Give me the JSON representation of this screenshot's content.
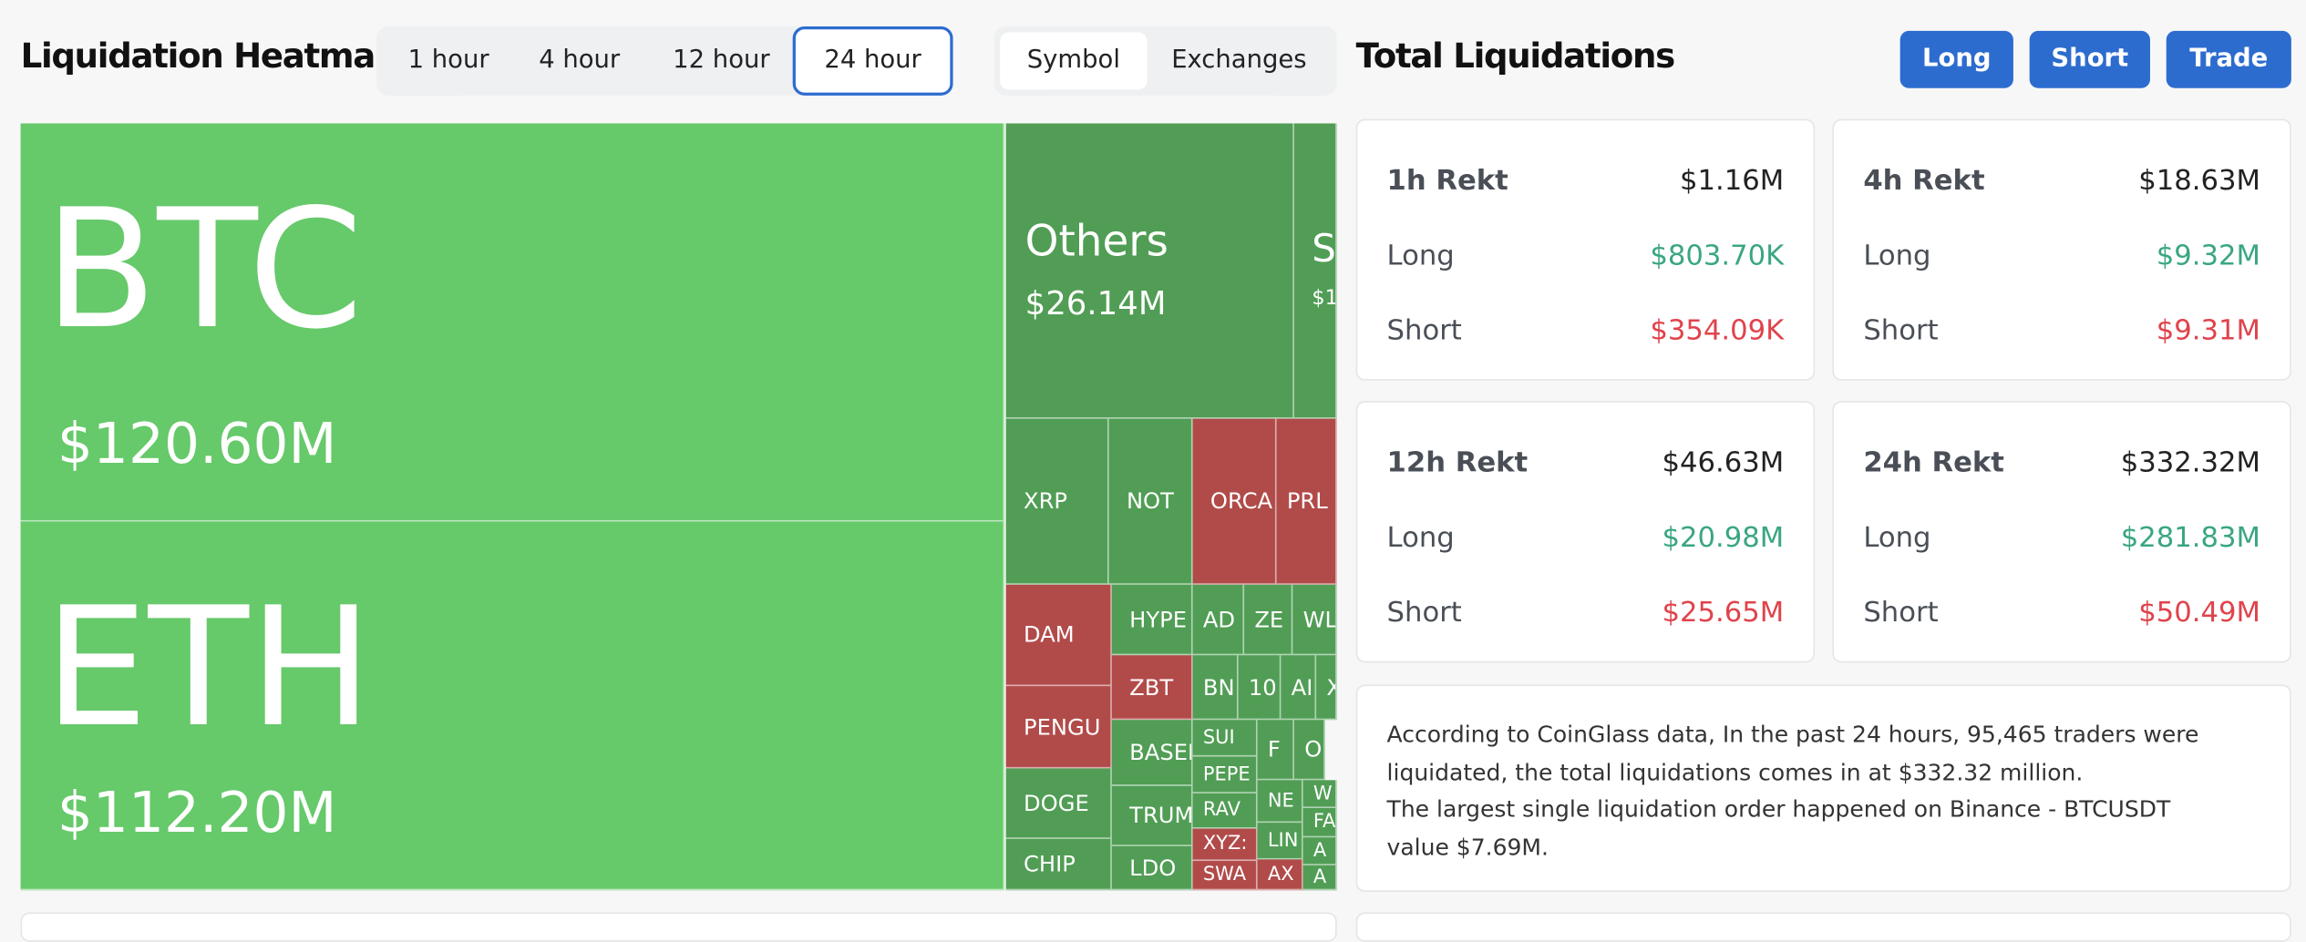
{
  "header": {
    "title": "Liquidation Heatmap",
    "time_tabs": [
      "1 hour",
      "4 hour",
      "12 hour",
      "24 hour"
    ],
    "view_tabs": [
      "Symbol",
      "Exchanges"
    ]
  },
  "heatmap": {
    "tiles": [
      {
        "label": "BTC",
        "value": "$120.60M",
        "color": "#66c96a"
      },
      {
        "label": "ETH",
        "value": "$112.20M",
        "color": "#66c96a"
      },
      {
        "label": "Others",
        "value": "$26.14M",
        "color": "#519d55"
      },
      {
        "label": "S",
        "value": "$1",
        "color": "#519d55"
      },
      {
        "label": "XRP",
        "color": "#519d55"
      },
      {
        "label": "NOT",
        "color": "#519d55"
      },
      {
        "label": "ORCA",
        "color": "#b14b49"
      },
      {
        "label": "PRL",
        "color": "#b14b49"
      },
      {
        "label": "DAM",
        "color": "#b14b49"
      },
      {
        "label": "PENGU",
        "color": "#b14b49"
      },
      {
        "label": "DOGE",
        "color": "#519d55"
      },
      {
        "label": "CHIP",
        "color": "#519d55"
      },
      {
        "label": "HYPE",
        "color": "#519d55"
      },
      {
        "label": "ZBT",
        "color": "#b14b49"
      },
      {
        "label": "BASEI",
        "color": "#519d55"
      },
      {
        "label": "TRUM",
        "color": "#519d55"
      },
      {
        "label": "LDO",
        "color": "#519d55"
      },
      {
        "label": "AD",
        "color": "#519d55"
      },
      {
        "label": "ZE",
        "color": "#519d55"
      },
      {
        "label": "WL",
        "color": "#519d55"
      },
      {
        "label": "BN",
        "color": "#519d55"
      },
      {
        "label": "10",
        "color": "#519d55"
      },
      {
        "label": "AI",
        "color": "#519d55"
      },
      {
        "label": "X",
        "color": "#519d55"
      },
      {
        "label": "SUI",
        "color": "#519d55"
      },
      {
        "label": "PEPE",
        "color": "#519d55"
      },
      {
        "label": "RAV",
        "color": "#519d55"
      },
      {
        "label": "XYZ:",
        "color": "#b14b49"
      },
      {
        "label": "SWA",
        "color": "#b14b49"
      },
      {
        "label": "F",
        "color": "#519d55"
      },
      {
        "label": "O",
        "color": "#519d55"
      },
      {
        "label": "NE",
        "color": "#519d55"
      },
      {
        "label": "LIN",
        "color": "#519d55"
      },
      {
        "label": "AX",
        "color": "#b14b49"
      },
      {
        "label": "W",
        "color": "#519d55"
      },
      {
        "label": "FA",
        "color": "#519d55"
      },
      {
        "label": "A",
        "color": "#519d55"
      },
      {
        "label": "A",
        "color": "#519d55"
      }
    ]
  },
  "totals": {
    "title": "Total Liquidations",
    "buttons": [
      "Long",
      "Short",
      "Trade"
    ],
    "cards": [
      {
        "period": "1h Rekt",
        "total": "$1.16M",
        "rows": [
          {
            "label": "Long",
            "value": "$803.70K"
          },
          {
            "label": "Short",
            "value": "$354.09K"
          }
        ]
      },
      {
        "period": "4h Rekt",
        "total": "$18.63M",
        "rows": [
          {
            "label": "Long",
            "value": "$9.32M"
          },
          {
            "label": "Short",
            "value": "$9.31M"
          }
        ]
      },
      {
        "period": "12h Rekt",
        "total": "$46.63M",
        "rows": [
          {
            "label": "Long",
            "value": "$20.98M"
          },
          {
            "label": "Short",
            "value": "$25.65M"
          }
        ]
      },
      {
        "period": "24h Rekt",
        "total": "$332.32M",
        "rows": [
          {
            "label": "Long",
            "value": "$281.83M"
          },
          {
            "label": "Short",
            "value": "$50.49M"
          }
        ]
      }
    ],
    "summary": [
      "According to CoinGlass data, In the past 24 hours, 95,465 traders were liquidated, the total liquidations comes in at $332.32 million.",
      "The largest single liquidation order happened on Binance - BTCUSDT value $7.69M."
    ]
  }
}
